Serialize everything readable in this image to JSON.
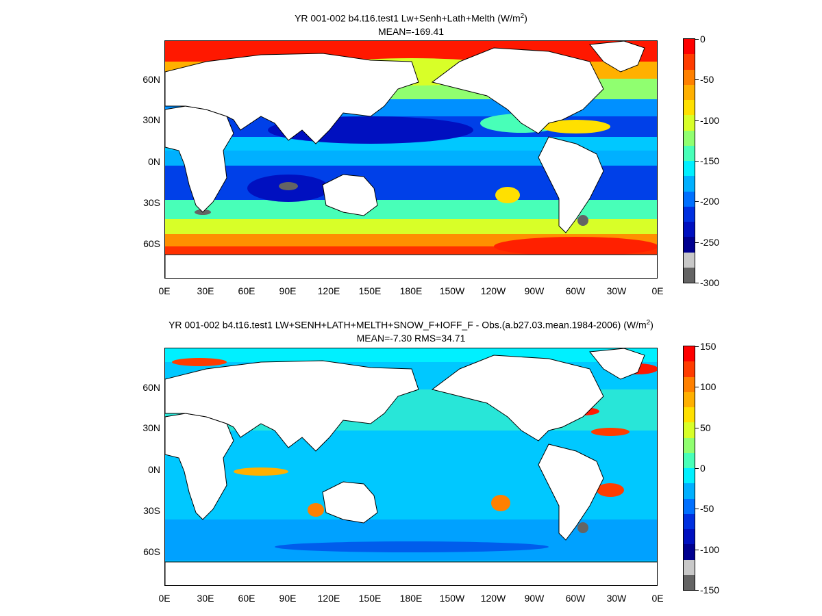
{
  "top": {
    "title_line1": "YR 001-002 b4.t16.test1 Lw+Senh+Lath+Melth (W/m",
    "title_unit_sup": "2",
    "title_line1_end": ")",
    "title_line2": "MEAN=-169.41",
    "colorbar_labels": [
      "0",
      "-50",
      "-100",
      "-150",
      "-200",
      "-250",
      "-300"
    ],
    "colorbar_colors": [
      "#ff0000",
      "#ff3c00",
      "#ff8000",
      "#ffb000",
      "#ffe000",
      "#d8ff28",
      "#90ff70",
      "#48ffb8",
      "#00f0ff",
      "#00b0ff",
      "#0070ff",
      "#0030e0",
      "#0010c0",
      "#000090",
      "#c8c8c8",
      "#646464"
    ]
  },
  "bottom": {
    "title_line1": "YR 001-002 b4.t16.test1 LW+SENH+LATH+MELTH+SNOW_F+IOFF_F - Obs.(a.b27.03.mean.1984-2006) (W/m",
    "title_unit_sup": "2",
    "title_line1_end": ")",
    "title_line2": "MEAN=-7.30 RMS=34.71",
    "colorbar_labels": [
      "150",
      "100",
      "50",
      "0",
      "-50",
      "-100",
      "-150"
    ],
    "colorbar_colors": [
      "#ff0000",
      "#ff3c00",
      "#ff8000",
      "#ffb000",
      "#ffe000",
      "#d8ff28",
      "#90ff70",
      "#48ffb8",
      "#00f0ff",
      "#00b0ff",
      "#0070ff",
      "#0030e0",
      "#0010c0",
      "#000090",
      "#c8c8c8",
      "#646464"
    ]
  },
  "lat_labels": [
    "60N",
    "30N",
    "0N",
    "30S",
    "60S"
  ],
  "lon_labels": [
    "0E",
    "30E",
    "60E",
    "90E",
    "120E",
    "150E",
    "180E",
    "150W",
    "120W",
    "90W",
    "60W",
    "30W",
    "0E"
  ],
  "colors": {
    "land": "#ffffff",
    "coast": "#000000"
  }
}
